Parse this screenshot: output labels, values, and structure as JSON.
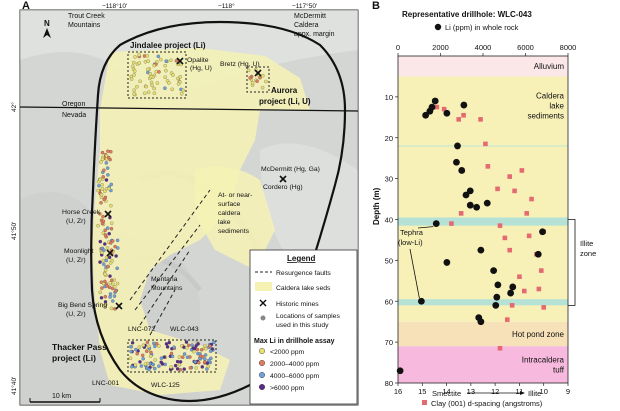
{
  "panel_a": {
    "letter": "A",
    "north_label": "N",
    "lon_ticks": [
      "−118°10'",
      "−118°",
      "−117°50'"
    ],
    "lat_ticks": [
      "42°",
      "41°50'",
      "41°40'"
    ],
    "places": {
      "trout_creek": [
        "Trout Creek",
        "Mountains"
      ],
      "mcdermitt_caldera": [
        "McDermitt",
        "Caldera",
        "appx. margin"
      ],
      "jindalee": "Jindalee project (Li)",
      "opalite": [
        "Opalite",
        "(Hg, U)"
      ],
      "bretz": "Bretz (Hg, U)",
      "aurora": [
        "Aurora",
        "project (Li, U)"
      ],
      "oregon": "Oregon",
      "nevada": "Nevada",
      "mcdermitt_mine": "McDermitt (Hg, Ga)",
      "cordero": "Cordero (Hg)",
      "at_near_surface": [
        "At- or near-",
        "surface",
        "caldera",
        "lake",
        "sediments"
      ],
      "horse_creek": [
        "Horse Creek",
        "(U, Zr)"
      ],
      "moonlight": [
        "Moonlight",
        "(U, Zr)"
      ],
      "montana_mtns": [
        "Montana",
        "Mountains"
      ],
      "big_bend": [
        "Big Bend Spring",
        "(U, Zr)"
      ],
      "lnc072": "LNC-072",
      "wlc043": "WLC-043",
      "thacker_pass": [
        "Thacker Pass",
        "project (Li)"
      ],
      "lnc001": "LNC-001",
      "wlc125": "WLC-125"
    },
    "scale_bar": "10 km",
    "legend": {
      "title": "Legend",
      "resurgence": "Resurgence faults",
      "caldera_seds": "Caldera lake seds",
      "historic": "Historic mines",
      "samples": [
        "Locations of samples",
        "used in this study"
      ],
      "max_li_title": "Max Li in drillhole assay",
      "bins": [
        {
          "label": "<2000 ppm",
          "color": "#e8e070"
        },
        {
          "label": "2000–4000 ppm",
          "color": "#e07a5a"
        },
        {
          "label": "4000–6000 ppm",
          "color": "#6fa0d8"
        },
        {
          "label": ">6000 ppm",
          "color": "#5a2c8a"
        }
      ]
    }
  },
  "chart_data": {
    "type": "scatter",
    "letter": "B",
    "title": "Representative drillhole: WLC-043",
    "legend_top": "Li (ppm) in whole rock",
    "legend_bottom": "Clay (001) d-spacing (angstroms)",
    "ylabel": "Depth (m)",
    "top_axis": {
      "range": [
        0,
        8000
      ],
      "ticks": [
        0,
        2000,
        4000,
        6000,
        8000
      ]
    },
    "bottom_axis": {
      "range": [
        16,
        9
      ],
      "ticks": [
        16,
        15,
        14,
        13,
        12,
        11,
        10,
        9
      ],
      "left_label": "Smectite",
      "right_label": "Illite"
    },
    "ylim": [
      0,
      80
    ],
    "yticks": [
      10,
      20,
      30,
      40,
      50,
      60,
      70,
      80
    ],
    "zones": [
      {
        "label": "Alluvium",
        "from": 0,
        "to": 5,
        "color": "#fbe6e8"
      },
      {
        "label": [
          "Caldera",
          "lake",
          "sediments"
        ],
        "from": 5,
        "to": 65,
        "color": "#f7f1b8"
      },
      {
        "label": "Hot pond zone",
        "from": 65,
        "to": 71,
        "color": "#f7e1b8"
      },
      {
        "label": [
          "Intracaldera",
          "tuff"
        ],
        "from": 71,
        "to": 80,
        "color": "#f7b9dd"
      }
    ],
    "bands": [
      {
        "from": 39.5,
        "to": 41.5,
        "color": "#b6e2d6"
      },
      {
        "from": 59.5,
        "to": 61.0,
        "color": "#b6e2d6"
      }
    ],
    "annotations": {
      "tephra": [
        "Tephra",
        "(low-Li)"
      ],
      "illite_zone": [
        "Illite",
        "zone"
      ]
    },
    "li_series": [
      {
        "li": 1300,
        "depth": 14.5
      },
      {
        "li": 1500,
        "depth": 13.5
      },
      {
        "li": 1600,
        "depth": 12.5
      },
      {
        "li": 1750,
        "depth": 11.0
      },
      {
        "li": 2300,
        "depth": 14.0
      },
      {
        "li": 3100,
        "depth": 12.0
      },
      {
        "li": 2800,
        "depth": 22.0
      },
      {
        "li": 2750,
        "depth": 26.0
      },
      {
        "li": 3000,
        "depth": 28.0
      },
      {
        "li": 3200,
        "depth": 34.0
      },
      {
        "li": 3400,
        "depth": 36.5
      },
      {
        "li": 3400,
        "depth": 33.0
      },
      {
        "li": 3700,
        "depth": 37.0
      },
      {
        "li": 4200,
        "depth": 36.0
      },
      {
        "li": 3900,
        "depth": 47.5
      },
      {
        "li": 1800,
        "depth": 41.0
      },
      {
        "li": 2300,
        "depth": 50.5
      },
      {
        "li": 4500,
        "depth": 52.5
      },
      {
        "li": 4700,
        "depth": 56.0
      },
      {
        "li": 4650,
        "depth": 59.0
      },
      {
        "li": 4600,
        "depth": 61.0
      },
      {
        "li": 5300,
        "depth": 58.0
      },
      {
        "li": 5400,
        "depth": 56.5
      },
      {
        "li": 3800,
        "depth": 64.0
      },
      {
        "li": 3900,
        "depth": 65.0
      },
      {
        "li": 6600,
        "depth": 48.5
      },
      {
        "li": 6800,
        "depth": 43.0
      },
      {
        "li": 1100,
        "depth": 60.0
      },
      {
        "li": 100,
        "depth": 77.0
      }
    ],
    "clay_series": [
      {
        "d": 14.4,
        "depth": 12.5
      },
      {
        "d": 14.1,
        "depth": 13.0
      },
      {
        "d": 13.5,
        "depth": 15.5
      },
      {
        "d": 13.3,
        "depth": 14.5
      },
      {
        "d": 12.6,
        "depth": 15.5
      },
      {
        "d": 12.4,
        "depth": 21.5
      },
      {
        "d": 12.3,
        "depth": 27.0
      },
      {
        "d": 11.9,
        "depth": 32.5
      },
      {
        "d": 11.4,
        "depth": 29.5
      },
      {
        "d": 11.2,
        "depth": 33.0
      },
      {
        "d": 10.9,
        "depth": 28.0
      },
      {
        "d": 10.7,
        "depth": 38.5
      },
      {
        "d": 10.5,
        "depth": 35.0
      },
      {
        "d": 11.8,
        "depth": 41.5
      },
      {
        "d": 11.6,
        "depth": 44.5
      },
      {
        "d": 11.4,
        "depth": 47.5
      },
      {
        "d": 10.6,
        "depth": 44.0
      },
      {
        "d": 10.3,
        "depth": 48.5
      },
      {
        "d": 10.1,
        "depth": 52.5
      },
      {
        "d": 10.0,
        "depth": 43.0
      },
      {
        "d": 11.0,
        "depth": 54.0
      },
      {
        "d": 10.8,
        "depth": 57.5
      },
      {
        "d": 10.2,
        "depth": 57.0
      },
      {
        "d": 10.0,
        "depth": 61.5
      },
      {
        "d": 11.3,
        "depth": 61.0
      },
      {
        "d": 12.7,
        "depth": 64.0
      },
      {
        "d": 11.5,
        "depth": 64.5
      },
      {
        "d": 11.8,
        "depth": 71.5
      },
      {
        "d": 13.4,
        "depth": 38.5
      },
      {
        "d": 13.8,
        "depth": 41.0
      }
    ]
  }
}
